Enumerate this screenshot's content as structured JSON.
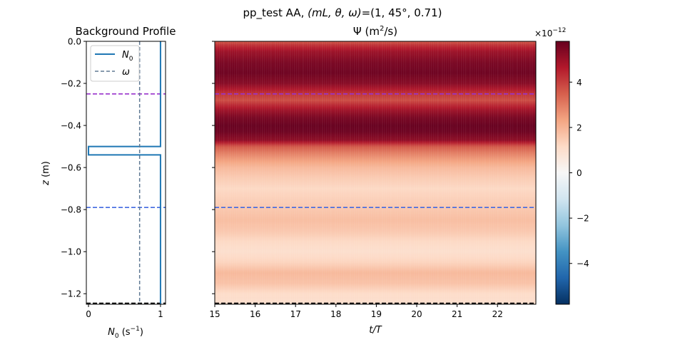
{
  "figure": {
    "suptitle_prefix": "pp_test AA, ",
    "suptitle_params": "(mL, θ, ω)",
    "suptitle_values": "=(1, 45°, 0.71)"
  },
  "chart_data": [
    {
      "id": "background_profile",
      "type": "line",
      "title": "Background Profile",
      "xlabel": "N",
      "xlabel_sub": "0",
      "xlabel_units": " (s",
      "xlabel_units_sup": "−1",
      "xlabel_units_end": ")",
      "ylabel_var": "z",
      "ylabel_units": " (m)",
      "xlim": [
        -0.03,
        1.07
      ],
      "ylim": [
        -1.25,
        0.0
      ],
      "xticks": [
        0,
        1
      ],
      "xtick_labels": [
        "0",
        "1"
      ],
      "yticks": [
        0.0,
        -0.2,
        -0.4,
        -0.6,
        -0.8,
        -1.0,
        -1.2
      ],
      "ytick_labels": [
        "0.0",
        "−0.2",
        "−0.4",
        "−0.6",
        "−0.8",
        "−1.0",
        "−1.2"
      ],
      "legend_location": "top-left",
      "series": [
        {
          "name": "N",
          "name_sub": "0",
          "style": "solid",
          "color": "#1f77b4",
          "points": [
            [
              1.0,
              0.0
            ],
            [
              1.0,
              -0.5
            ],
            [
              0.0,
              -0.5
            ],
            [
              0.0,
              -0.54
            ],
            [
              1.0,
              -0.54
            ],
            [
              1.0,
              -1.25
            ]
          ]
        },
        {
          "name": "ω",
          "style": "dashed",
          "color": "#607a94",
          "points": [
            [
              0.71,
              0.0
            ],
            [
              0.71,
              -1.25
            ]
          ]
        }
      ],
      "reference_lines": [
        {
          "y": -0.25,
          "color": "#9932cc"
        },
        {
          "y": -0.79,
          "color": "#4169e1"
        },
        {
          "y": -1.245,
          "color": "#000000"
        }
      ]
    },
    {
      "id": "psi_heatmap",
      "type": "heatmap",
      "title_symbol": "Ψ",
      "title_units_start": " (m",
      "title_units_sup": "2",
      "title_units_end": "/s)",
      "xlabel_var": "t/T",
      "xlim": [
        15.0,
        22.95
      ],
      "ylim": [
        -1.25,
        0.0
      ],
      "xticks": [
        15,
        16,
        17,
        18,
        19,
        20,
        21,
        22
      ],
      "xtick_labels": [
        "15",
        "16",
        "17",
        "18",
        "19",
        "20",
        "21",
        "22"
      ],
      "yticks": [
        0.0,
        -0.2,
        -0.4,
        -0.6,
        -0.8,
        -1.0,
        -1.2
      ],
      "colormap": "RdBu_r",
      "clim": [
        -5.8,
        5.8
      ],
      "clim_scale_label": "×10",
      "clim_scale_exp": "−12",
      "colorbar_ticks": [
        4,
        2,
        0,
        -2,
        -4
      ],
      "colorbar_tick_labels": [
        "4",
        "2",
        "0",
        "−2",
        "−4"
      ],
      "reference_lines": [
        {
          "y": -0.25,
          "color": "#9932cc"
        },
        {
          "y": -0.79,
          "color": "#4169e1"
        },
        {
          "y": -1.245,
          "color": "#000000"
        }
      ],
      "depth_profile_z": [
        0.0,
        -0.02,
        -0.05,
        -0.1,
        -0.15,
        -0.2,
        -0.25,
        -0.28,
        -0.3,
        -0.33,
        -0.36,
        -0.4,
        -0.43,
        -0.47,
        -0.5,
        -0.53,
        -0.56,
        -0.6,
        -0.65,
        -0.7,
        -0.75,
        -0.8,
        -0.85,
        -0.9,
        -0.95,
        -1.0,
        -1.05,
        -1.1,
        -1.15,
        -1.2,
        -1.25
      ],
      "depth_profile_value": [
        3.6,
        4.3,
        5.0,
        5.5,
        5.7,
        5.3,
        4.2,
        3.8,
        4.3,
        5.0,
        5.5,
        5.8,
        5.7,
        5.2,
        3.6,
        3.0,
        2.5,
        1.9,
        1.5,
        1.2,
        1.4,
        1.6,
        1.8,
        1.6,
        1.2,
        1.0,
        1.3,
        1.9,
        1.7,
        1.1,
        1.0
      ]
    }
  ]
}
